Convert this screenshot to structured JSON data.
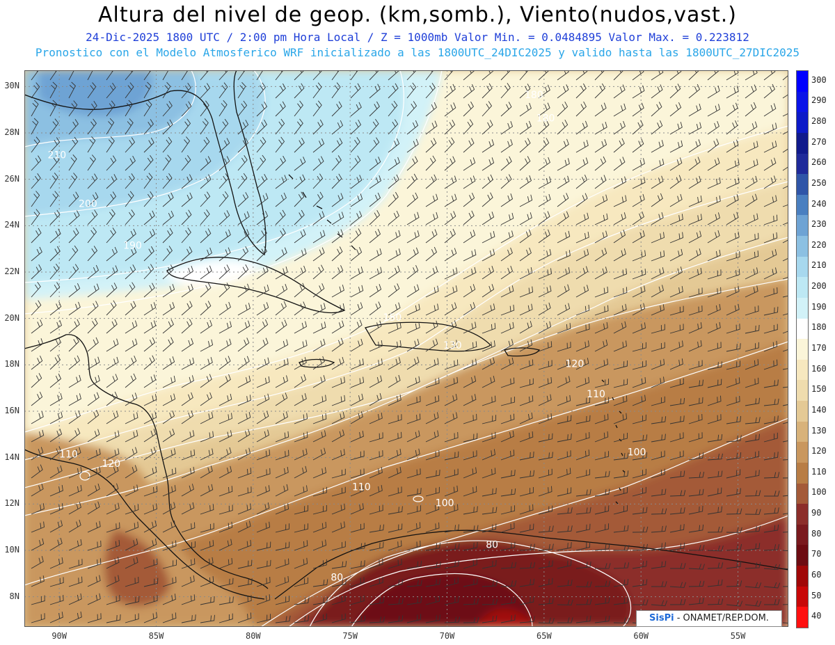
{
  "header": {
    "title": "Altura del nivel de geop. (km,somb.), Viento(nudos,vast.)",
    "subtitle": "24-Dic-2025  1800 UTC / 2:00 pm Hora Local / Z = 1000mb  Valor Min. = 0.0484895   Valor Max. = 0.223812",
    "subtitle2": "Pronostico con el Modelo Atmosferico WRF inicializado a las 1800UTC_24DIC2025 y valido hasta las  1800UTC_27DIC2025"
  },
  "axes": {
    "lat_labels": [
      {
        "text": "30N",
        "value": 30
      },
      {
        "text": "28N",
        "value": 28
      },
      {
        "text": "26N",
        "value": 26
      },
      {
        "text": "24N",
        "value": 24
      },
      {
        "text": "22N",
        "value": 22
      },
      {
        "text": "20N",
        "value": 20
      },
      {
        "text": "18N",
        "value": 18
      },
      {
        "text": "16N",
        "value": 16
      },
      {
        "text": "14N",
        "value": 14
      },
      {
        "text": "12N",
        "value": 12
      },
      {
        "text": "10N",
        "value": 10
      },
      {
        "text": "8N",
        "value": 8
      }
    ],
    "lon_labels": [
      {
        "text": "90W",
        "value": -90
      },
      {
        "text": "85W",
        "value": -85
      },
      {
        "text": "80W",
        "value": -80
      },
      {
        "text": "75W",
        "value": -75
      },
      {
        "text": "70W",
        "value": -70
      },
      {
        "text": "65W",
        "value": -65
      },
      {
        "text": "60W",
        "value": -60
      },
      {
        "text": "55W",
        "value": -55
      }
    ],
    "lat_range": [
      6.7,
      30.7
    ],
    "lon_range": [
      -91.8,
      -52.4
    ]
  },
  "colorbar": {
    "levels": [
      {
        "label": "300",
        "color": "#0000ff"
      },
      {
        "label": "290",
        "color": "#0a14e8"
      },
      {
        "label": "280",
        "color": "#0c1ac8"
      },
      {
        "label": "270",
        "color": "#101a8c"
      },
      {
        "label": "260",
        "color": "#1f2a9a"
      },
      {
        "label": "250",
        "color": "#2f55a8"
      },
      {
        "label": "240",
        "color": "#4a7fc0"
      },
      {
        "label": "230",
        "color": "#6ea3d4"
      },
      {
        "label": "220",
        "color": "#8cc0e2"
      },
      {
        "label": "210",
        "color": "#a7d8ee"
      },
      {
        "label": "200",
        "color": "#bde8f4"
      },
      {
        "label": "190",
        "color": "#d2f2f8"
      },
      {
        "label": "180",
        "color": "#ffffff"
      },
      {
        "label": "170",
        "color": "#fbf5d9"
      },
      {
        "label": "160",
        "color": "#f7e8bf"
      },
      {
        "label": "150",
        "color": "#efdcae"
      },
      {
        "label": "140",
        "color": "#e4c995"
      },
      {
        "label": "130",
        "color": "#d8b27a"
      },
      {
        "label": "120",
        "color": "#c9975e"
      },
      {
        "label": "110",
        "color": "#b87d45"
      },
      {
        "label": "100",
        "color": "#a45a38"
      },
      {
        "label": "90",
        "color": "#8c2e2a"
      },
      {
        "label": "80",
        "color": "#7a1a1e"
      },
      {
        "label": "70",
        "color": "#6d0c12"
      },
      {
        "label": "60",
        "color": "#a00808"
      },
      {
        "label": "50",
        "color": "#c80808"
      },
      {
        "label": "40",
        "color": "#ff1010"
      }
    ]
  },
  "contour_labels": [
    {
      "text": "210",
      "lon": -90.6,
      "lat": 26.9
    },
    {
      "text": "200",
      "lon": -89.0,
      "lat": 24.8
    },
    {
      "text": "190",
      "lon": -86.7,
      "lat": 23.0
    },
    {
      "text": "180",
      "lon": -66.0,
      "lat": 29.5
    },
    {
      "text": "180",
      "lon": -65.4,
      "lat": 28.5
    },
    {
      "text": "150",
      "lon": -73.3,
      "lat": 19.9
    },
    {
      "text": "130",
      "lon": -70.2,
      "lat": 18.7
    },
    {
      "text": "120",
      "lon": -63.9,
      "lat": 17.9
    },
    {
      "text": "110",
      "lon": -62.8,
      "lat": 16.6
    },
    {
      "text": "120",
      "lon": -87.8,
      "lat": 13.6
    },
    {
      "text": "110",
      "lon": -90.0,
      "lat": 14.0
    },
    {
      "text": "110",
      "lon": -74.9,
      "lat": 12.6
    },
    {
      "text": "100",
      "lon": -70.6,
      "lat": 11.9
    },
    {
      "text": "100",
      "lon": -60.7,
      "lat": 14.1
    },
    {
      "text": "80",
      "lon": -68.0,
      "lat": 10.1
    },
    {
      "text": "80",
      "lon": -76.0,
      "lat": 8.7
    }
  ],
  "credit": {
    "brand": "SisPi",
    "text": " - ONAMET/REP.DOM."
  }
}
